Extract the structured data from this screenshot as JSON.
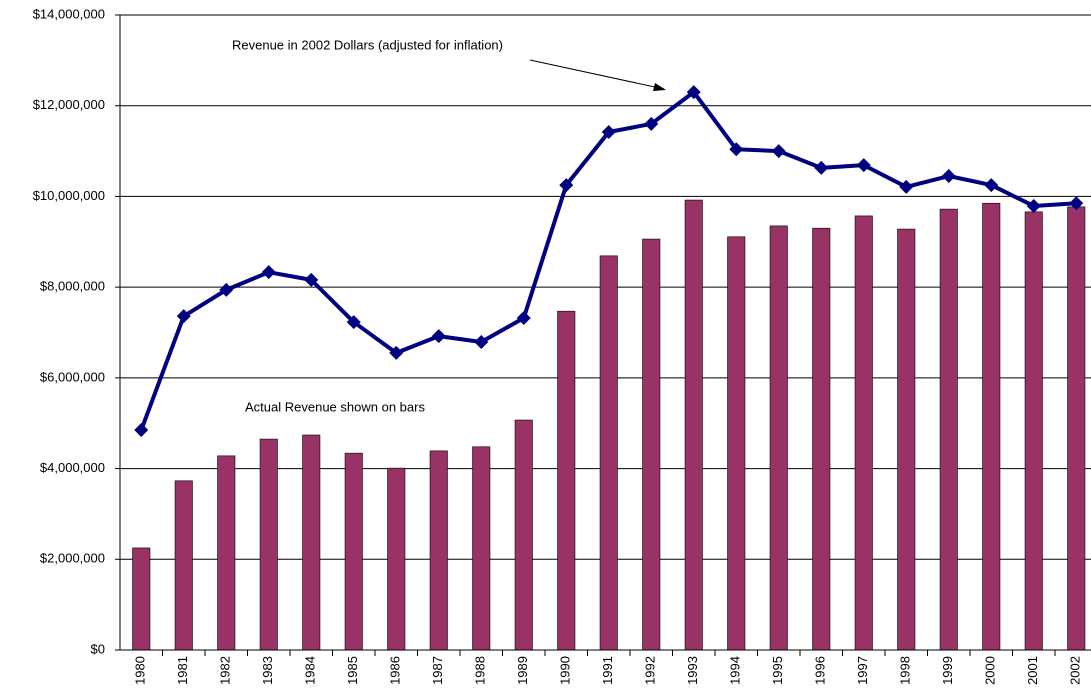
{
  "chart_data": {
    "type": "bar-line",
    "annotations": [
      "Revenue in 2002 Dollars (adjusted for inflation)",
      "Actual Revenue shown on bars"
    ],
    "categories": [
      "1980",
      "1981",
      "1982",
      "1983",
      "1984",
      "1985",
      "1986",
      "1987",
      "1988",
      "1989",
      "1990",
      "1991",
      "1992",
      "1993",
      "1994",
      "1995",
      "1996",
      "1997",
      "1998",
      "1999",
      "2000",
      "2001",
      "2002"
    ],
    "series": [
      {
        "type": "bar",
        "color": "#993366",
        "values": [
          2250000,
          3730000,
          4280000,
          4650000,
          4740000,
          4340000,
          4010000,
          4390000,
          4480000,
          5070000,
          7470000,
          8690000,
          9060000,
          9920000,
          9110000,
          9350000,
          9300000,
          9570000,
          9280000,
          9720000,
          9850000,
          9660000,
          9770000
        ]
      },
      {
        "type": "line",
        "color": "#000080",
        "values": [
          4850000,
          7360000,
          7940000,
          8330000,
          8160000,
          7230000,
          6550000,
          6920000,
          6790000,
          7320000,
          10250000,
          11420000,
          11600000,
          12300000,
          11040000,
          11000000,
          10630000,
          10690000,
          10210000,
          10450000,
          10250000,
          9790000,
          9850000
        ]
      }
    ],
    "ylim": [
      0,
      14000000
    ],
    "yticks": [
      {
        "value": 0,
        "label": "$0"
      },
      {
        "value": 2000000,
        "label": "$2,000,000"
      },
      {
        "value": 4000000,
        "label": "$4,000,000"
      },
      {
        "value": 6000000,
        "label": "$6,000,000"
      },
      {
        "value": 8000000,
        "label": "$8,000,000"
      },
      {
        "value": 10000000,
        "label": "$10,000,000"
      },
      {
        "value": 12000000,
        "label": "$12,000,000"
      },
      {
        "value": 14000000,
        "label": "$14,000,000"
      }
    ],
    "grid": true
  }
}
